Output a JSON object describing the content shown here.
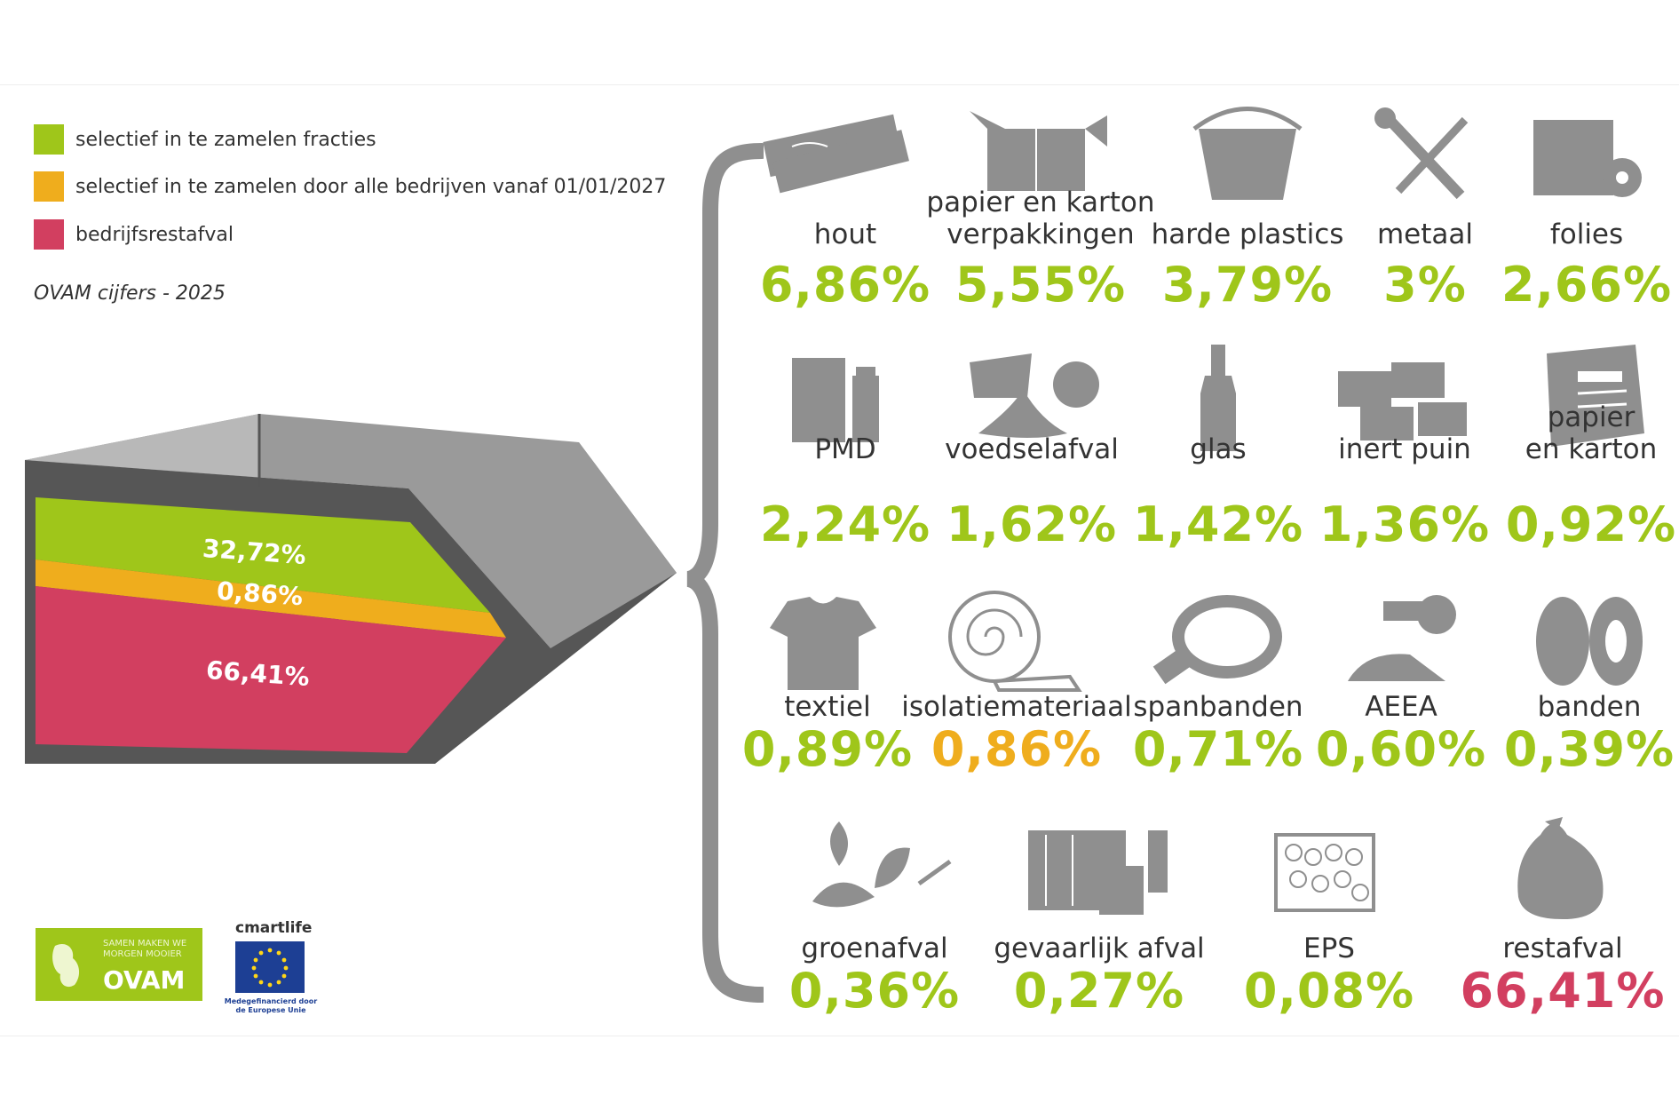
{
  "legend": [
    {
      "label": "selectief in te zamelen fracties",
      "color": "#9fc61a"
    },
    {
      "label": "selectief in te zamelen door alle bedrijven vanaf 01/01/2027",
      "color": "#efad1d"
    },
    {
      "label": "bedrijfsrestafval",
      "color": "#d23f60"
    }
  ],
  "source": "OVAM cijfers - 2025",
  "container": {
    "green_pct": "32,72%",
    "orange_pct": "0,86%",
    "red_pct": "66,41%"
  },
  "colors": {
    "green": "#9fc61a",
    "orange": "#efad1d",
    "red": "#d23f60",
    "icon": "#8f8f8f",
    "frame": "#565656"
  },
  "fractions": [
    {
      "label": "hout",
      "pct": "6,86%",
      "cat": "green",
      "icon": "wood-icon"
    },
    {
      "label": "papier en karton\nverpakkingen",
      "pct": "5,55%",
      "cat": "green",
      "icon": "cardboard-box-icon"
    },
    {
      "label": "harde plastics",
      "pct": "3,79%",
      "cat": "green",
      "icon": "bucket-icon"
    },
    {
      "label": "metaal",
      "pct": "3%",
      "cat": "green",
      "icon": "wrench-nail-icon"
    },
    {
      "label": "folies",
      "pct": "2,66%",
      "cat": "green",
      "icon": "foil-roll-icon"
    },
    {
      "label": "PMD",
      "pct": "2,24%",
      "cat": "green",
      "icon": "carton-bottle-icon"
    },
    {
      "label": "voedselafval",
      "pct": "1,62%",
      "cat": "green",
      "icon": "food-waste-icon"
    },
    {
      "label": "glas",
      "pct": "1,42%",
      "cat": "green",
      "icon": "glass-bottle-icon"
    },
    {
      "label": "inert puin",
      "pct": "1,36%",
      "cat": "green",
      "icon": "rubble-icon"
    },
    {
      "label": "papier\nen karton",
      "pct": "0,92%",
      "cat": "green",
      "icon": "newspaper-icon"
    },
    {
      "label": "textiel",
      "pct": "0,89%",
      "cat": "green",
      "icon": "tshirt-icon"
    },
    {
      "label": "isolatiemateriaal",
      "pct": "0,86%",
      "cat": "orange",
      "icon": "insulation-roll-icon"
    },
    {
      "label": "spanbanden",
      "pct": "0,71%",
      "cat": "green",
      "icon": "strap-icon"
    },
    {
      "label": "AEEA",
      "pct": "0,60%",
      "cat": "green",
      "icon": "appliances-icon"
    },
    {
      "label": "banden",
      "pct": "0,39%",
      "cat": "green",
      "icon": "tires-icon"
    },
    {
      "label": "groenafval",
      "pct": "0,36%",
      "cat": "green",
      "icon": "leaves-icon"
    },
    {
      "label": "gevaarlijk afval",
      "pct": "0,27%",
      "cat": "green",
      "icon": "paint-spray-icon"
    },
    {
      "label": "EPS",
      "pct": "0,08%",
      "cat": "green",
      "icon": "eps-block-icon"
    },
    {
      "label": "restafval",
      "pct": "66,41%",
      "cat": "red",
      "icon": "trash-bag-icon"
    }
  ],
  "logos": {
    "ovam_tagline": "SAMEN MAKEN WE MORGEN MOOIER",
    "ovam_name": "OVAM",
    "life_brand": "cmartlife",
    "life_caption": "Medegefinancierd door de Europese Unie"
  }
}
